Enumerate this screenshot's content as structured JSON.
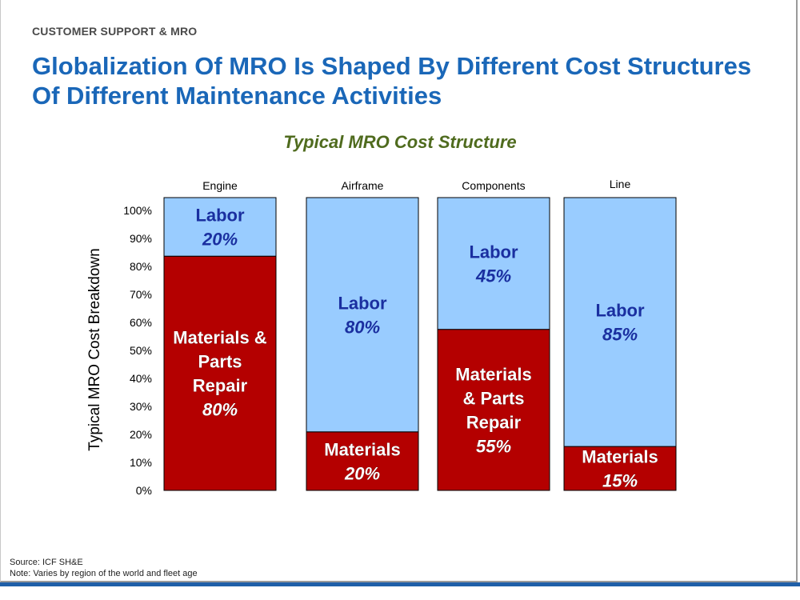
{
  "header": {
    "section": "CUSTOMER SUPPORT & MRO",
    "title": "Globalization Of MRO Is Shaped By Different Cost Structures Of Different Maintenance Activities"
  },
  "footer": {
    "source": "Source: ICF SH&E",
    "note": "Note:  Varies by region of the world and fleet age"
  },
  "colors": {
    "labor": "#99ccff",
    "materials": "#b40000",
    "labor_text": "#1a2fa0",
    "materials_text": "#ffffff",
    "title": "#1a67b8",
    "chart_title": "#4f6b1e"
  },
  "chart_data": {
    "type": "bar",
    "stacked": true,
    "title": "Typical MRO Cost Structure",
    "ylabel": "Typical MRO Cost Breakdown",
    "xlabel": "",
    "ylim": [
      0,
      100
    ],
    "yticks": [
      "0%",
      "10%",
      "20%",
      "30%",
      "40%",
      "50%",
      "60%",
      "70%",
      "80%",
      "90%",
      "100%"
    ],
    "categories": [
      "Engine",
      "Airframe",
      "Components",
      "Line"
    ],
    "series": [
      {
        "key": "materials",
        "values": [
          80,
          20,
          55,
          15
        ],
        "segment_labels": [
          [
            "Materials &",
            "Parts",
            "Repair",
            "80%"
          ],
          [
            "Materials",
            "20%"
          ],
          [
            "Materials",
            "& Parts",
            "Repair",
            "55%"
          ],
          [
            "Materials",
            "15%"
          ]
        ]
      },
      {
        "key": "labor",
        "values": [
          20,
          80,
          45,
          85
        ],
        "segment_labels": [
          [
            "Labor",
            "20%"
          ],
          [
            "Labor",
            "80%"
          ],
          [
            "Labor",
            "45%"
          ],
          [
            "Labor",
            "85%"
          ]
        ]
      }
    ],
    "grid": false,
    "legend": "none"
  }
}
